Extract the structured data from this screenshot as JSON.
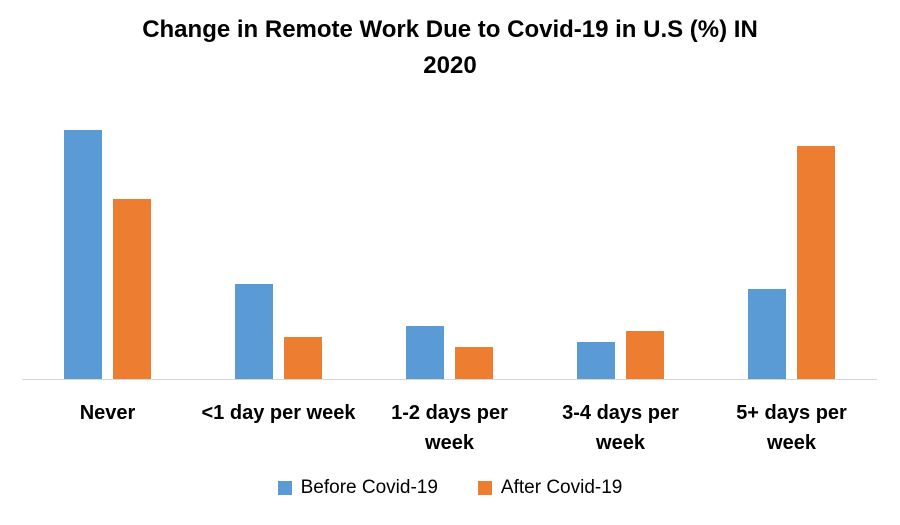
{
  "title_lines": [
    "Change in Remote Work Due to Covid-19 in U.S (%) IN",
    "2020"
  ],
  "chart_data": {
    "type": "bar",
    "title": "Change in Remote Work Due to Covid-19 in U.S (%) IN 2020",
    "categories": [
      "Never",
      "<1 day per week",
      "1-2 days per week",
      "3-4 days per week",
      "5+ days per week"
    ],
    "series": [
      {
        "name": "Before Covid-19",
        "color": "#5B9BD5",
        "values": [
          47,
          18,
          10,
          7,
          17
        ]
      },
      {
        "name": "After Covid-19",
        "color": "#ED7D31",
        "values": [
          34,
          8,
          6,
          9,
          44
        ]
      }
    ],
    "xlabel": "",
    "ylabel": "",
    "ylim": [
      0,
      50
    ],
    "grid": false,
    "y_axis_visible": false,
    "legend_position": "bottom"
  },
  "colors": {
    "before_series": "#5B9BD5",
    "after_series": "#ED7D31",
    "axis_line": "#D6D6D6",
    "text": "#000000",
    "background": "#FFFFFF"
  }
}
